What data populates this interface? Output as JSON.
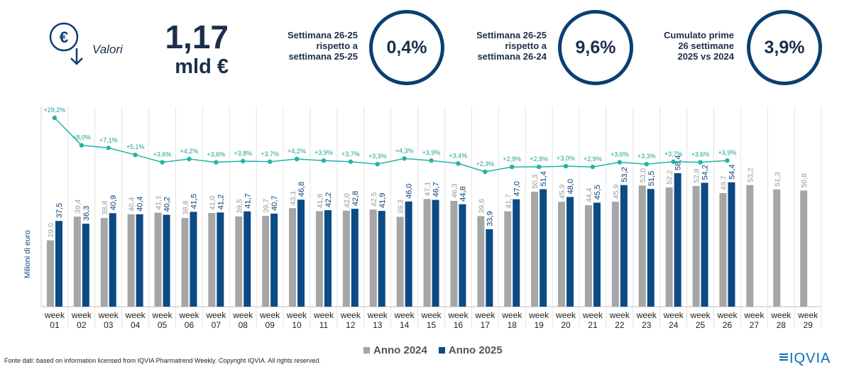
{
  "header": {
    "icon": "euro-down-icon",
    "valori_label": "Valori",
    "big_value": "1,17",
    "big_unit": "mld €"
  },
  "kpis": [
    {
      "label": "Settimana 26-25\nrispetto a\nsettimana 25-25",
      "value": "0,4%"
    },
    {
      "label": "Settimana 26-25\nrispetto a\nsettimana 26-24",
      "value": "9,6%"
    },
    {
      "label": "Cumulato prime\n26 settimane\n2025 vs 2024",
      "value": "3,9%"
    }
  ],
  "colors": {
    "anno2024": "#a6a6a6",
    "anno2025": "#0b4a85",
    "growth_line": "#1fb5a3",
    "circle_border": "#0b3f73"
  },
  "chart_data": {
    "type": "bar",
    "ylabel": "Milioni di euro",
    "categories": [
      "week 01",
      "week 02",
      "week 03",
      "week 04",
      "week 05",
      "week 06",
      "week 07",
      "week 08",
      "week 09",
      "week 10",
      "week 11",
      "week 12",
      "week 13",
      "week 14",
      "week 15",
      "week 16",
      "week 17",
      "week 18",
      "week 19",
      "week 20",
      "week 21",
      "week 22",
      "week 23",
      "week 24",
      "week 25",
      "week 26",
      "week 27",
      "week 28",
      "week 29"
    ],
    "series": [
      {
        "name": "Anno 2024",
        "values": [
          29.0,
          39.4,
          38.8,
          40.4,
          41.1,
          38.8,
          41.0,
          39.5,
          39.7,
          43.1,
          41.8,
          42.0,
          42.5,
          39.3,
          47.1,
          46.3,
          39.6,
          41.7,
          50.3,
          45.9,
          44.4,
          45.9,
          53.0,
          52.2,
          52.8,
          49.7,
          53.2,
          51.3,
          50.8
        ],
        "labels": [
          "29,0",
          "39,4",
          "38,8",
          "40,4",
          "41,1",
          "38,8",
          "41,0",
          "39,5",
          "39,7",
          "43,1",
          "41,8",
          "42,0",
          "42,5",
          "39,3",
          "47,1",
          "46,3",
          "39,6",
          "41,7",
          "50,3",
          "45,9",
          "44,4",
          "45,9",
          "53,0",
          "52,2",
          "52,8",
          "49,7",
          "53,2",
          "51,3",
          "50,8"
        ]
      },
      {
        "name": "Anno 2025",
        "values": [
          37.5,
          36.3,
          40.9,
          40.4,
          40.2,
          41.5,
          41.2,
          41.7,
          40.7,
          46.8,
          42.2,
          42.8,
          41.9,
          46.0,
          46.7,
          44.8,
          33.9,
          47.0,
          51.4,
          48.0,
          45.5,
          53.2,
          51.5,
          58.4,
          54.2,
          54.4,
          null,
          null,
          null
        ],
        "labels": [
          "37,5",
          "36,3",
          "40,9",
          "40,4",
          "40,2",
          "41,5",
          "41,2",
          "41,7",
          "40,7",
          "46,8",
          "42,2",
          "42,8",
          "41,9",
          "46,0",
          "46,7",
          "44,8",
          "33,9",
          "47,0",
          "51,4",
          "48,0",
          "45,5",
          "53,2",
          "51,5",
          "58,4",
          "54,2",
          "54,4",
          "",
          "",
          ""
        ]
      }
    ],
    "growth": {
      "values": [
        29.2,
        8.0,
        7.1,
        5.1,
        3.6,
        4.2,
        3.6,
        3.8,
        3.7,
        4.2,
        3.9,
        3.7,
        3.3,
        4.3,
        3.9,
        3.4,
        2.3,
        2.9,
        2.9,
        3.0,
        2.9,
        3.6,
        3.3,
        3.7,
        3.6,
        3.9
      ],
      "labels": [
        "+29,2%",
        "+8,0%",
        "+7,1%",
        "+5,1%",
        "+3,6%",
        "+4,2%",
        "+3,6%",
        "+3,8%",
        "+3,7%",
        "+4,2%",
        "+3,9%",
        "+3,7%",
        "+3,3%",
        "+4,3%",
        "+3,9%",
        "+3,4%",
        "+2,3%",
        "+2,9%",
        "+2,9%",
        "+3,0%",
        "+2,9%",
        "+3,6%",
        "+3,3%",
        "+3,7%",
        "+3,6%",
        "+3,9%"
      ]
    },
    "ylim": [
      0,
      75
    ],
    "legend": "bottom-center",
    "grid": "vertical-separators"
  },
  "footer": {
    "source": "Fonte dati: based on information licensed from IQVIA Pharmatrend Weekly. Copyright IQVIA. All rights reserved.",
    "logo_text": "IQVIA"
  }
}
